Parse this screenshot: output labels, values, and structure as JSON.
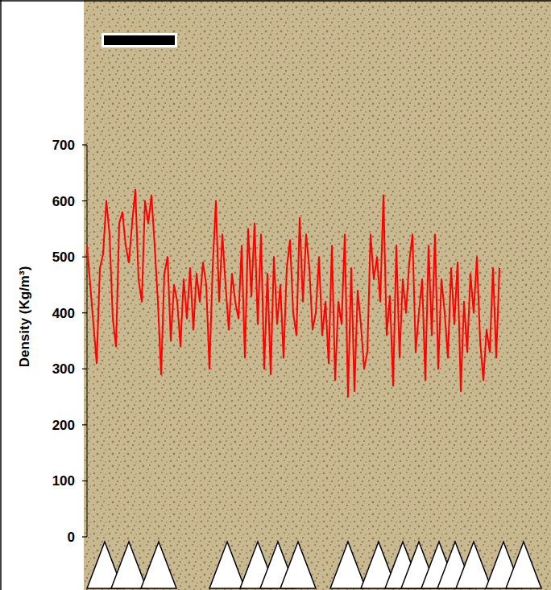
{
  "chart_data": {
    "type": "line",
    "y_label": "Density (Kg/m³)",
    "x": [
      0,
      4,
      8,
      12,
      16,
      20,
      24,
      28,
      32,
      36,
      40,
      44,
      48,
      52,
      56,
      60,
      64,
      68,
      72,
      76,
      80,
      84,
      88,
      92,
      96,
      100,
      104,
      108,
      112,
      116,
      120,
      124,
      128,
      132,
      136,
      140,
      144,
      148,
      152,
      156,
      160,
      164,
      168,
      172,
      176,
      180,
      184,
      188,
      192,
      196,
      200,
      204,
      208,
      212,
      216,
      220,
      224,
      228,
      232,
      236,
      240,
      244,
      248,
      252,
      256,
      260,
      264,
      268,
      272,
      276,
      280,
      284,
      288,
      292,
      296,
      300,
      304,
      308,
      312,
      316,
      320,
      324,
      328,
      332,
      336,
      340,
      344,
      348,
      352,
      356,
      360,
      364,
      368,
      372,
      376,
      380,
      384,
      388,
      392,
      396,
      400,
      404,
      408,
      412,
      416,
      420,
      424,
      428,
      432,
      436,
      440,
      444,
      448,
      452,
      456,
      460,
      464,
      468,
      472,
      476,
      480,
      484,
      488,
      492,
      496,
      500,
      504,
      508,
      512
    ],
    "series": [
      {
        "color": "#ff0000",
        "values": [
          520,
          450,
          380,
          310,
          480,
          505,
          600,
          540,
          390,
          340,
          560,
          580,
          520,
          490,
          560,
          620,
          460,
          420,
          600,
          560,
          610,
          520,
          420,
          290,
          470,
          500,
          350,
          450,
          420,
          340,
          460,
          390,
          480,
          370,
          470,
          420,
          490,
          450,
          300,
          480,
          600,
          420,
          540,
          450,
          370,
          470,
          420,
          390,
          520,
          320,
          550,
          430,
          560,
          380,
          540,
          300,
          470,
          290,
          500,
          380,
          450,
          320,
          480,
          530,
          400,
          360,
          570,
          420,
          540,
          480,
          370,
          400,
          500,
          360,
          420,
          310,
          520,
          280,
          420,
          380,
          540,
          250,
          480,
          260,
          440,
          380,
          300,
          330,
          540,
          460,
          500,
          420,
          610,
          360,
          430,
          270,
          520,
          320,
          460,
          400,
          490,
          540,
          330,
          400,
          460,
          280,
          520,
          360,
          540,
          300,
          460,
          400,
          320,
          480,
          380,
          490,
          260,
          420,
          330,
          470,
          400,
          500,
          350,
          280,
          370,
          330,
          480,
          320,
          480
        ]
      }
    ],
    "xlim": [
      0,
      572
    ],
    "ylim": [
      0,
      700
    ],
    "yticks": [
      0,
      100,
      200,
      300,
      400,
      500,
      600,
      700
    ],
    "tick_labels": "y",
    "ring_boundaries": [
      22,
      52,
      89,
      174,
      212,
      237,
      262,
      324,
      362,
      392,
      412,
      437,
      457,
      480,
      517,
      542
    ]
  }
}
